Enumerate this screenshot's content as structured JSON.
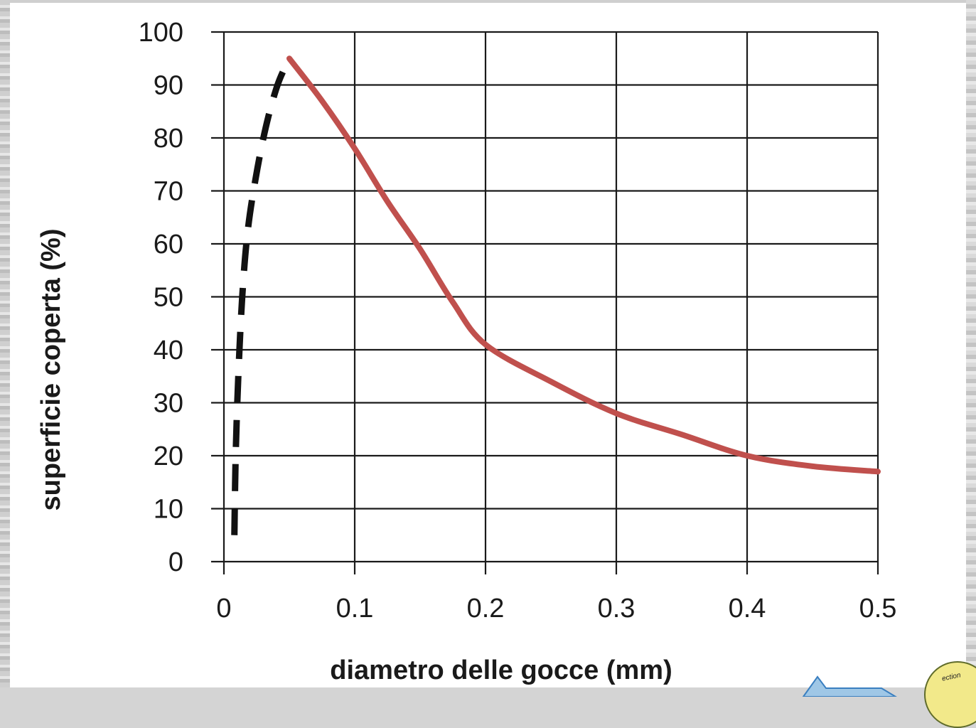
{
  "chart_data": {
    "type": "line",
    "xlabel": "diametro delle gocce (mm)",
    "ylabel": "superficie coperta (%)",
    "xlim": [
      0,
      0.5
    ],
    "ylim": [
      0,
      100
    ],
    "xticks": [
      "0",
      "0.1",
      "0.2",
      "0.3",
      "0.4",
      "0.5"
    ],
    "yticks": [
      "0",
      "10",
      "20",
      "30",
      "40",
      "50",
      "60",
      "70",
      "80",
      "90",
      "100"
    ],
    "grid": true,
    "series": [
      {
        "style": "dashed",
        "color": "#111111",
        "x": [
          0.008,
          0.009,
          0.011,
          0.014,
          0.018,
          0.024,
          0.032,
          0.041,
          0.05
        ],
        "y": [
          5,
          20,
          35,
          50,
          62,
          72,
          82,
          90,
          95
        ]
      },
      {
        "style": "solid",
        "color": "#c0504d",
        "x": [
          0.05,
          0.075,
          0.1,
          0.125,
          0.15,
          0.175,
          0.2,
          0.25,
          0.3,
          0.35,
          0.4,
          0.45,
          0.5
        ],
        "y": [
          95,
          87,
          78,
          68,
          59,
          49,
          41,
          34,
          28,
          24,
          20,
          18,
          17
        ]
      }
    ]
  },
  "seal": {
    "text": "ection"
  },
  "colors": {
    "paper": "#ffffff",
    "grid": "#1a1a1a",
    "curve": "#c0504d"
  }
}
